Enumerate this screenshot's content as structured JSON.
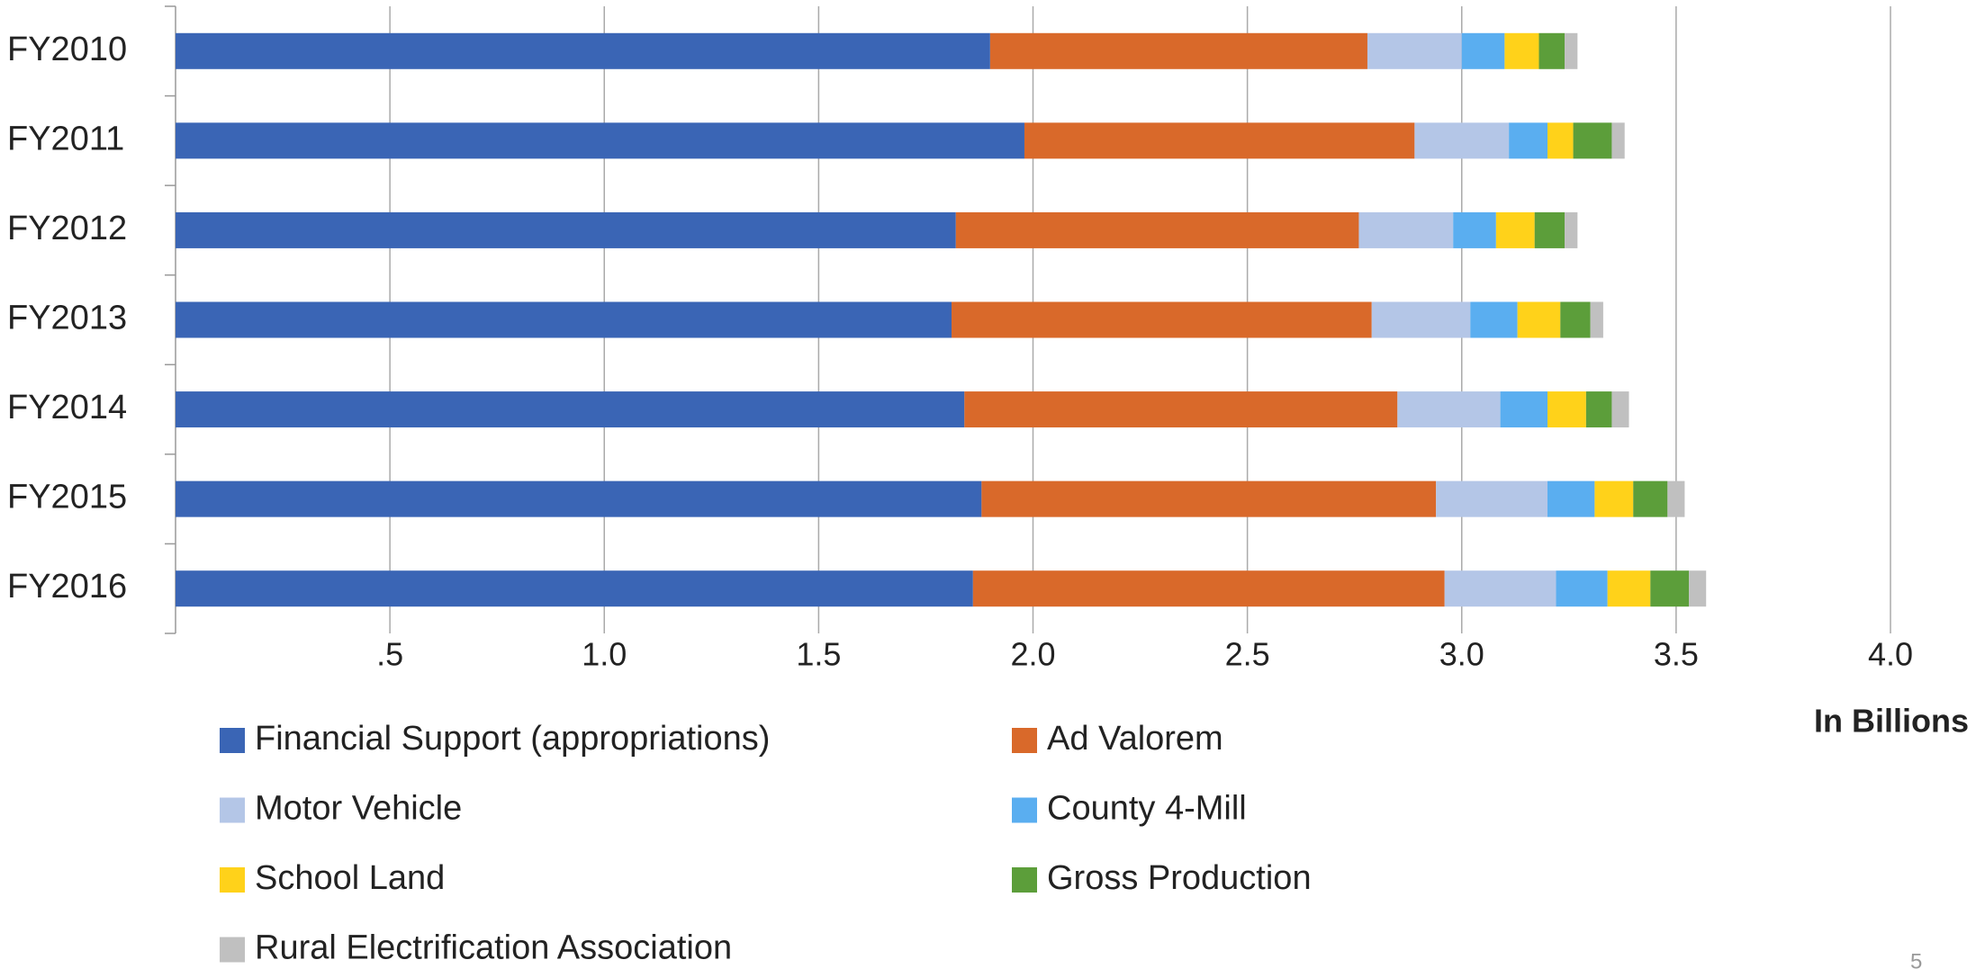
{
  "chart_data": {
    "type": "stacked_bar_horizontal",
    "categories": [
      "FY2010",
      "FY2011",
      "FY2012",
      "FY2013",
      "FY2014",
      "FY2015",
      "FY2016"
    ],
    "series": [
      {
        "name": "Financial Support (appropriations)",
        "color": "#3a65b5",
        "values": [
          1.9,
          1.98,
          1.82,
          1.81,
          1.84,
          1.88,
          1.86
        ]
      },
      {
        "name": "Ad Valorem",
        "color": "#d9692a",
        "values": [
          0.88,
          0.91,
          0.94,
          0.98,
          1.01,
          1.06,
          1.1
        ]
      },
      {
        "name": "Motor Vehicle",
        "color": "#b4c6e7",
        "values": [
          0.22,
          0.22,
          0.22,
          0.23,
          0.24,
          0.26,
          0.26
        ]
      },
      {
        "name": "County 4-Mill",
        "color": "#5aaef0",
        "values": [
          0.1,
          0.09,
          0.1,
          0.11,
          0.11,
          0.11,
          0.12
        ]
      },
      {
        "name": "School Land",
        "color": "#ffd21a",
        "values": [
          0.08,
          0.06,
          0.09,
          0.1,
          0.09,
          0.09,
          0.1
        ]
      },
      {
        "name": "Gross Production",
        "color": "#5c9e3a",
        "values": [
          0.06,
          0.09,
          0.07,
          0.07,
          0.06,
          0.08,
          0.09
        ]
      },
      {
        "name": "Rural Electrification Association",
        "color": "#c0c0c0",
        "values": [
          0.03,
          0.03,
          0.03,
          0.03,
          0.04,
          0.04,
          0.04
        ]
      }
    ],
    "xlim": [
      0,
      4.0
    ],
    "xticks": [
      {
        "value": 0.5,
        "label": ".5"
      },
      {
        "value": 1.0,
        "label": "1.0"
      },
      {
        "value": 1.5,
        "label": "1.5"
      },
      {
        "value": 2.0,
        "label": "2.0"
      },
      {
        "value": 2.5,
        "label": "2.5"
      },
      {
        "value": 3.0,
        "label": "3.0"
      },
      {
        "value": 3.5,
        "label": "3.5"
      },
      {
        "value": 4.0,
        "label": "4.0"
      }
    ],
    "xlabel": "In Billions",
    "grid": true
  },
  "page_number": "5"
}
